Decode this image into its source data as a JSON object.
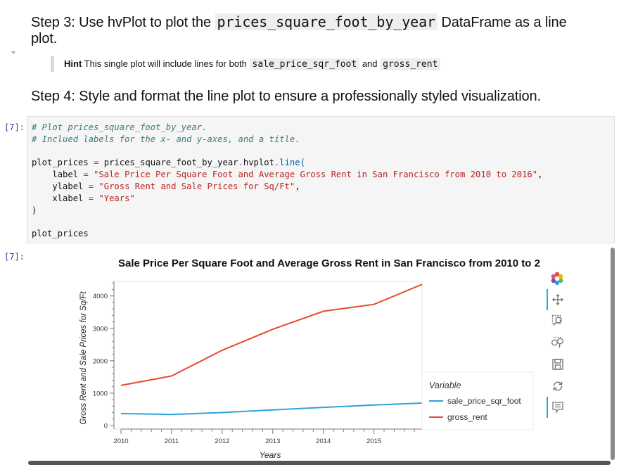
{
  "step3": {
    "prefix": "Step 3: Use hvPlot to plot the ",
    "code": "prices_square_foot_by_year",
    "suffix": " DataFrame as a line plot."
  },
  "hint": {
    "label": "Hint",
    "text1": " This single plot will include lines for both ",
    "code1": "sale_price_sqr_foot",
    "text2": " and ",
    "code2": "gross_rent"
  },
  "step4": {
    "text": "Step 4: Style and format the line plot to ensure a professionally styled visualization."
  },
  "code_cell": {
    "prompt": "[7]:",
    "lines": [
      [
        {
          "t": "# Plot prices_square_foot_by_year.",
          "c": "comment"
        }
      ],
      [
        {
          "t": "# Inclued labels for the x- and y-axes, and a title.",
          "c": "comment"
        }
      ],
      [
        {
          "t": "",
          "c": ""
        }
      ],
      [
        {
          "t": "plot_prices ",
          "c": ""
        },
        {
          "t": "=",
          "c": "op"
        },
        {
          "t": " prices_square_foot_by_year",
          "c": ""
        },
        {
          "t": ".",
          "c": "op"
        },
        {
          "t": "hvplot",
          "c": ""
        },
        {
          "t": ".",
          "c": "op"
        },
        {
          "t": "line(",
          "c": "fn"
        }
      ],
      [
        {
          "t": "    label ",
          "c": ""
        },
        {
          "t": "=",
          "c": "op"
        },
        {
          "t": " ",
          "c": ""
        },
        {
          "t": "\"Sale Price Per Square Foot and Average Gross Rent in San Francisco from 2010 to 2016\"",
          "c": "str"
        },
        {
          "t": ",",
          "c": ""
        }
      ],
      [
        {
          "t": "    ylabel ",
          "c": ""
        },
        {
          "t": "=",
          "c": "op"
        },
        {
          "t": " ",
          "c": ""
        },
        {
          "t": "\"Gross Rent and Sale Prices for Sq/Ft\"",
          "c": "str"
        },
        {
          "t": ",",
          "c": ""
        }
      ],
      [
        {
          "t": "    xlabel ",
          "c": ""
        },
        {
          "t": "=",
          "c": "op"
        },
        {
          "t": " ",
          "c": ""
        },
        {
          "t": "\"Years\"",
          "c": "str"
        }
      ],
      [
        {
          "t": ")",
          "c": ""
        }
      ],
      [
        {
          "t": "",
          "c": ""
        }
      ],
      [
        {
          "t": "plot_prices",
          "c": ""
        }
      ]
    ]
  },
  "output": {
    "prompt": "[7]:"
  },
  "chart_data": {
    "type": "line",
    "title": "Sale Price Per Square Foot and Average Gross Rent in San Francisco from 2010 to 2",
    "xlabel": "Years",
    "ylabel": "Gross Rent and Sale Prices for Sq/Ft",
    "x": [
      2010,
      2011,
      2012,
      2013,
      2014,
      2015,
      2016
    ],
    "xlim": [
      2010,
      2015.95
    ],
    "ylim": [
      -110,
      4450
    ],
    "xticks": [
      2010,
      2011,
      2012,
      2013,
      2014,
      2015
    ],
    "yticks": [
      0,
      1000,
      2000,
      3000,
      4000
    ],
    "grid": false,
    "legend": {
      "title": "Variable",
      "placement": "right-outside-bottom"
    },
    "series": [
      {
        "name": "sale_price_sqr_foot",
        "color": "#30a2da",
        "values": [
          370,
          341,
          400,
          483,
          560,
          632,
          697
        ]
      },
      {
        "name": "gross_rent",
        "color": "#e64b2c",
        "values": [
          1239,
          1530,
          2324,
          2971,
          3528,
          3739,
          4390
        ]
      }
    ]
  },
  "toolbar": {
    "tools": [
      "bokeh-logo-icon",
      "pan-icon",
      "box-zoom-icon",
      "wheel-zoom-icon",
      "save-icon",
      "reset-icon",
      "hover-icon"
    ]
  }
}
